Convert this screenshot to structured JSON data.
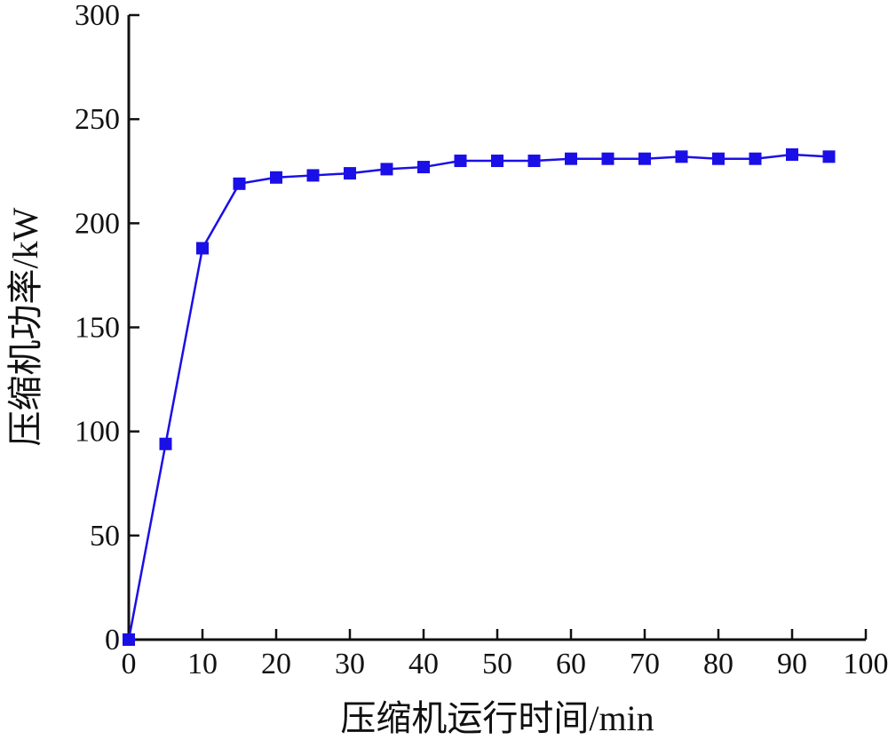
{
  "chart_data": {
    "type": "line",
    "xlabel": "压缩机运行时间/min",
    "ylabel": "压缩机功率/kW",
    "xlim": [
      0,
      100
    ],
    "ylim": [
      0,
      300
    ],
    "x_ticks": [
      "0",
      "10",
      "20",
      "30",
      "40",
      "50",
      "60",
      "70",
      "80",
      "90",
      "100"
    ],
    "y_ticks": [
      "0",
      "50",
      "100",
      "150",
      "200",
      "250",
      "300"
    ],
    "grid": false,
    "series": [
      {
        "color": "#1a0fe6",
        "marker": "square",
        "x": [
          0,
          5,
          10,
          15,
          20,
          25,
          30,
          35,
          40,
          45,
          50,
          55,
          60,
          65,
          70,
          75,
          80,
          85,
          90,
          95
        ],
        "y": [
          0,
          94,
          188,
          219,
          222,
          223,
          224,
          226,
          227,
          230,
          230,
          230,
          231,
          231,
          231,
          232,
          231,
          231,
          233,
          232
        ]
      }
    ]
  }
}
